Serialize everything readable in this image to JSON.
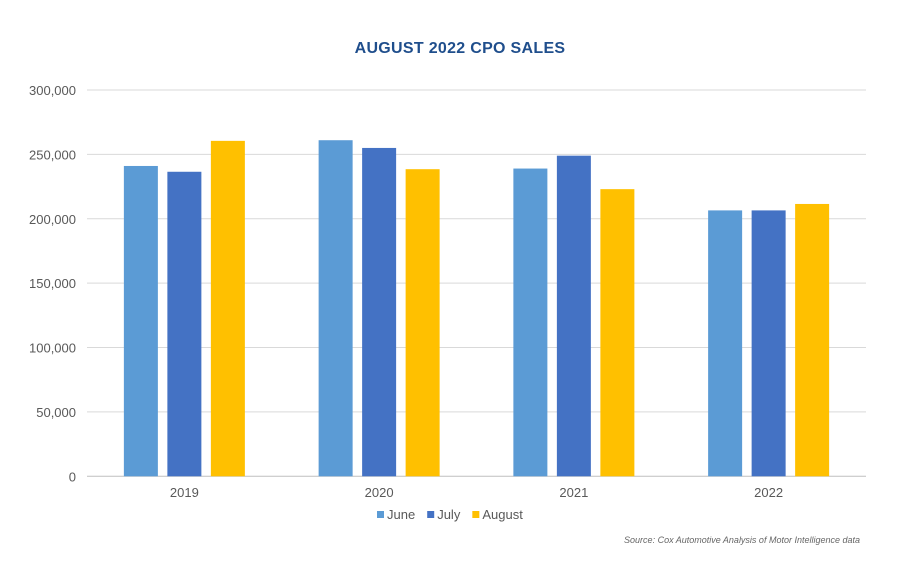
{
  "chart_data": {
    "type": "bar",
    "title": "AUGUST 2022 CPO SALES",
    "categories": [
      "2019",
      "2020",
      "2021",
      "2022"
    ],
    "series": [
      {
        "name": "June",
        "color": "#5b9bd5",
        "values": [
          241000,
          261000,
          239000,
          206500
        ]
      },
      {
        "name": "July",
        "color": "#4472c4",
        "values": [
          236500,
          255000,
          249000,
          206500
        ]
      },
      {
        "name": "August",
        "color": "#ffc000",
        "values": [
          260500,
          238500,
          223000,
          211500
        ]
      }
    ],
    "ylim": [
      0,
      300000
    ],
    "yticks": [
      "0",
      "50,000",
      "100,000",
      "150,000",
      "200,000",
      "250,000",
      "300,000"
    ],
    "grid": true,
    "legend": "bottom",
    "xlabel": "",
    "ylabel": ""
  },
  "source": "Source: Cox Automotive Analysis of Motor Intelligence data"
}
